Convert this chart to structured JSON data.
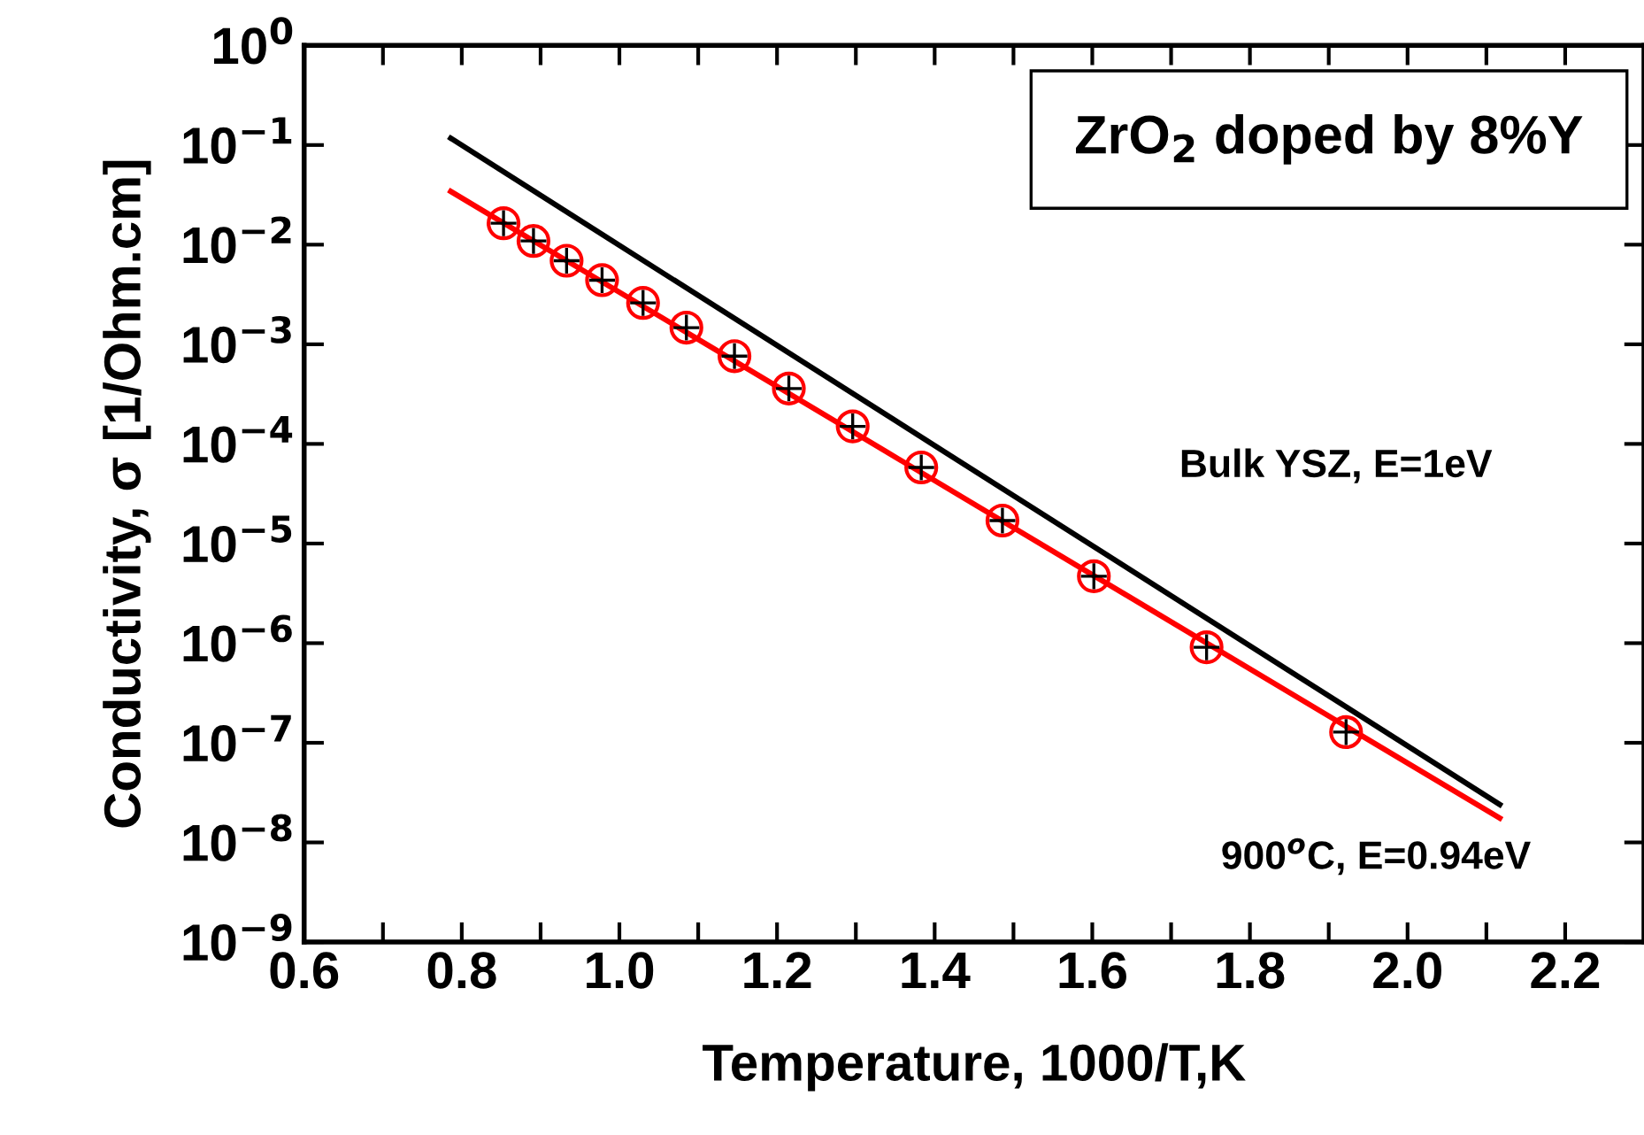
{
  "chart_data": {
    "type": "scatter",
    "xlabel": "Temperature, 1000/T,K",
    "ylabel": "Conductivity, σ [1/Ohm.cm]",
    "annotations": [
      "ZrO$_{2}$ doped by 8%Y",
      "Bulk YSZ, E=1eV",
      "900$^{o}$C, E=0.94eV"
    ],
    "log": "y",
    "xlim": [
      0.6,
      2.3
    ],
    "ylim": [
      1e-09,
      1
    ],
    "xticks": [
      0.6,
      {
        "value": 0.7,
        "label": null
      },
      0.8,
      {
        "value": 0.9,
        "label": null
      },
      {
        "value": 1,
        "label": "1.0"
      },
      {
        "value": 1.1,
        "label": null
      },
      1.2,
      {
        "value": 1.3,
        "label": null
      },
      1.4,
      {
        "value": 1.5,
        "label": null
      },
      1.6,
      {
        "value": 1.7,
        "label": null
      },
      1.8,
      {
        "value": 1.9,
        "label": null
      },
      {
        "value": 2,
        "label": "2.0"
      },
      {
        "value": 2.1,
        "label": null
      },
      2.2
    ],
    "yticks": [
      {
        "value": 1e-09,
        "label": "10$^{−9}$"
      },
      {
        "value": 1e-08,
        "label": "10$^{−8}$"
      },
      {
        "value": 1e-07,
        "label": "10$^{−7}$"
      },
      {
        "value": 1e-06,
        "label": "10$^{−6}$"
      },
      {
        "value": 1e-05,
        "label": "10$^{−5}$"
      },
      {
        "value": 0.0001,
        "label": "10$^{−4}$"
      },
      {
        "value": 0.001,
        "label": "10$^{−3}$"
      },
      {
        "value": 0.01,
        "label": "10$^{−2}$"
      },
      {
        "value": 0.1,
        "label": "10$^{−1}$"
      },
      {
        "value": 1,
        "label": "10$^{0}$"
      }
    ],
    "grid": false,
    "legend": false,
    "series": [
      {
        "type": "line",
        "color": "#000000",
        "x": [
          0.786,
          2.117
        ],
        "values": [
          0.117,
          2.4e-08
        ],
        "line_style": "solid",
        "marker": "none"
      },
      {
        "type": "line",
        "color": "#ff0000",
        "x": [
          0.786,
          2.117
        ],
        "values": [
          0.0342,
          1.75e-08
        ],
        "line_style": "solid",
        "marker": "none"
      },
      {
        "color": "#ff0000",
        "marker": "circle",
        "x": [
          0.853,
          0.891,
          0.933,
          0.978,
          1.03,
          1.085,
          1.146,
          1.215,
          1.296,
          1.383,
          1.486,
          1.602,
          1.745,
          1.922
        ],
        "values": [
          0.0164,
          0.0109,
          0.0069,
          0.0044,
          0.0026,
          0.00147,
          0.00076,
          0.00036,
          0.00015,
          5.8e-05,
          1.7e-05,
          4.7e-06,
          9.1e-07,
          1.28e-07
        ]
      }
    ]
  }
}
